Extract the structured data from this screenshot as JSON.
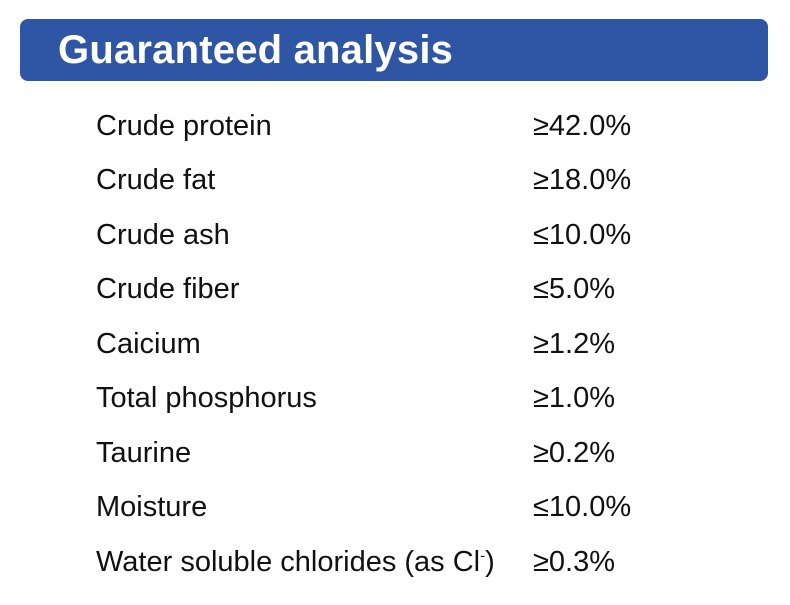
{
  "header": {
    "title": "Guaranteed analysis",
    "color": "#2f56a4"
  },
  "analysis": {
    "rows": [
      {
        "label": "Crude protein",
        "label_sup": "",
        "label_close": "",
        "value": "≥42.0%"
      },
      {
        "label": "Crude fat",
        "label_sup": "",
        "label_close": "",
        "value": "≥18.0%"
      },
      {
        "label": "Crude ash",
        "label_sup": "",
        "label_close": "",
        "value": "≤10.0%"
      },
      {
        "label": "Crude fiber",
        "label_sup": "",
        "label_close": "",
        "value": "≤5.0%"
      },
      {
        "label": "Caicium",
        "label_sup": "",
        "label_close": "",
        "value": "≥1.2%"
      },
      {
        "label": "Total phosphorus",
        "label_sup": "",
        "label_close": "",
        "value": "≥1.0%"
      },
      {
        "label": "Taurine",
        "label_sup": "",
        "label_close": "",
        "value": "≥0.2%"
      },
      {
        "label": "Moisture",
        "label_sup": "",
        "label_close": "",
        "value": "≤10.0%"
      },
      {
        "label": "Water soluble chlorides (as Cl",
        "label_sup": "-",
        "label_close": ")",
        "value": "≥0.3%"
      }
    ]
  }
}
